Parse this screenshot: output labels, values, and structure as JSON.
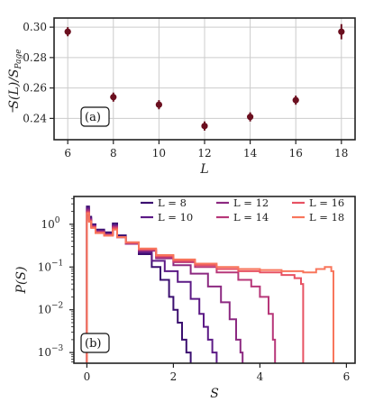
{
  "chart_data": [
    {
      "type": "scatter",
      "panel_label": "(a)",
      "xlabel": "L",
      "ylabel": "S̄(L)/S_Page",
      "ylabel_parts": {
        "main": "S(L)/S",
        "sub": "Page"
      },
      "xlim": [
        5.4,
        18.6
      ],
      "ylim": [
        0.226,
        0.306
      ],
      "xticks": [
        6,
        8,
        10,
        12,
        14,
        16,
        18
      ],
      "yticks": [
        0.24,
        0.26,
        0.28,
        0.3
      ],
      "ytick_labels": [
        "0.24",
        "0.26",
        "0.28",
        "0.30"
      ],
      "grid": true,
      "marker_color": "#6b0f1f",
      "points": [
        {
          "x": 6,
          "y": 0.297,
          "err": 0.003
        },
        {
          "x": 8,
          "y": 0.254,
          "err": 0.003
        },
        {
          "x": 10,
          "y": 0.249,
          "err": 0.003
        },
        {
          "x": 12,
          "y": 0.235,
          "err": 0.003
        },
        {
          "x": 14,
          "y": 0.241,
          "err": 0.003
        },
        {
          "x": 16,
          "y": 0.252,
          "err": 0.003
        },
        {
          "x": 18,
          "y": 0.297,
          "err": 0.005
        }
      ]
    },
    {
      "type": "line",
      "style": "step-histogram",
      "panel_label": "(b)",
      "xlabel": "S",
      "ylabel": "P(S)",
      "xlim": [
        -0.3,
        6.2
      ],
      "ylim_log10": [
        -3.25,
        0.65
      ],
      "y_scale": "log",
      "xticks": [
        0,
        2,
        4,
        6
      ],
      "yticks_exp": [
        -3,
        -2,
        -1,
        0
      ],
      "legend_placement": "top-right",
      "series": [
        {
          "name": "L = 8",
          "color": "#3b0f70",
          "x": [
            0,
            0.05,
            0.1,
            0.2,
            0.4,
            0.6,
            0.7,
            0.9,
            1.2,
            1.5,
            1.7,
            1.9,
            2.0,
            2.1,
            2.2,
            2.3,
            2.4
          ],
          "y": [
            2.6,
            1.5,
            1.0,
            0.75,
            0.65,
            1.05,
            0.55,
            0.35,
            0.2,
            0.1,
            0.05,
            0.02,
            0.01,
            0.005,
            0.002,
            0.001,
            0.0006
          ]
        },
        {
          "name": "L = 10",
          "color": "#5c1a86",
          "x": [
            0,
            0.05,
            0.1,
            0.2,
            0.4,
            0.6,
            0.7,
            0.9,
            1.2,
            1.5,
            1.8,
            2.1,
            2.4,
            2.6,
            2.7,
            2.8,
            2.9,
            3.0
          ],
          "y": [
            2.4,
            1.4,
            0.95,
            0.7,
            0.6,
            0.95,
            0.5,
            0.35,
            0.22,
            0.14,
            0.08,
            0.045,
            0.018,
            0.008,
            0.004,
            0.002,
            0.001,
            0.0006
          ]
        },
        {
          "name": "L = 12",
          "color": "#8c2981",
          "x": [
            0,
            0.05,
            0.1,
            0.2,
            0.4,
            0.6,
            0.7,
            0.9,
            1.2,
            1.6,
            2.0,
            2.4,
            2.8,
            3.1,
            3.3,
            3.45,
            3.55,
            3.6
          ],
          "y": [
            2.2,
            1.3,
            0.9,
            0.68,
            0.58,
            0.9,
            0.5,
            0.35,
            0.24,
            0.16,
            0.11,
            0.07,
            0.035,
            0.015,
            0.006,
            0.002,
            0.001,
            0.0006
          ]
        },
        {
          "name": "L = 14",
          "color": "#b73779",
          "x": [
            0,
            0.05,
            0.1,
            0.2,
            0.4,
            0.6,
            0.7,
            0.9,
            1.2,
            1.6,
            2.0,
            2.5,
            3.0,
            3.5,
            3.8,
            4.0,
            4.2,
            4.3,
            4.35
          ],
          "y": [
            2.0,
            1.25,
            0.88,
            0.66,
            0.56,
            0.85,
            0.5,
            0.36,
            0.25,
            0.17,
            0.13,
            0.1,
            0.075,
            0.05,
            0.035,
            0.02,
            0.008,
            0.002,
            0.0006
          ]
        },
        {
          "name": "L = 16",
          "color": "#e75263",
          "x": [
            0,
            0.05,
            0.1,
            0.2,
            0.4,
            0.6,
            0.7,
            0.9,
            1.2,
            1.6,
            2.0,
            2.5,
            3.0,
            3.5,
            4.0,
            4.5,
            4.8,
            4.95,
            5.0
          ],
          "y": [
            1.9,
            1.2,
            0.85,
            0.64,
            0.55,
            0.8,
            0.5,
            0.37,
            0.26,
            0.18,
            0.14,
            0.11,
            0.09,
            0.08,
            0.075,
            0.065,
            0.055,
            0.04,
            0.0006
          ]
        },
        {
          "name": "L = 18",
          "color": "#f8765c",
          "x": [
            0,
            0.05,
            0.1,
            0.2,
            0.4,
            0.6,
            0.7,
            0.9,
            1.2,
            1.6,
            2.0,
            2.5,
            3.0,
            3.5,
            4.0,
            4.5,
            5.0,
            5.3,
            5.5,
            5.65,
            5.7
          ],
          "y": [
            1.8,
            1.15,
            0.82,
            0.62,
            0.54,
            0.75,
            0.5,
            0.38,
            0.27,
            0.19,
            0.15,
            0.12,
            0.1,
            0.09,
            0.085,
            0.08,
            0.075,
            0.09,
            0.1,
            0.08,
            0.0006
          ]
        }
      ]
    }
  ]
}
